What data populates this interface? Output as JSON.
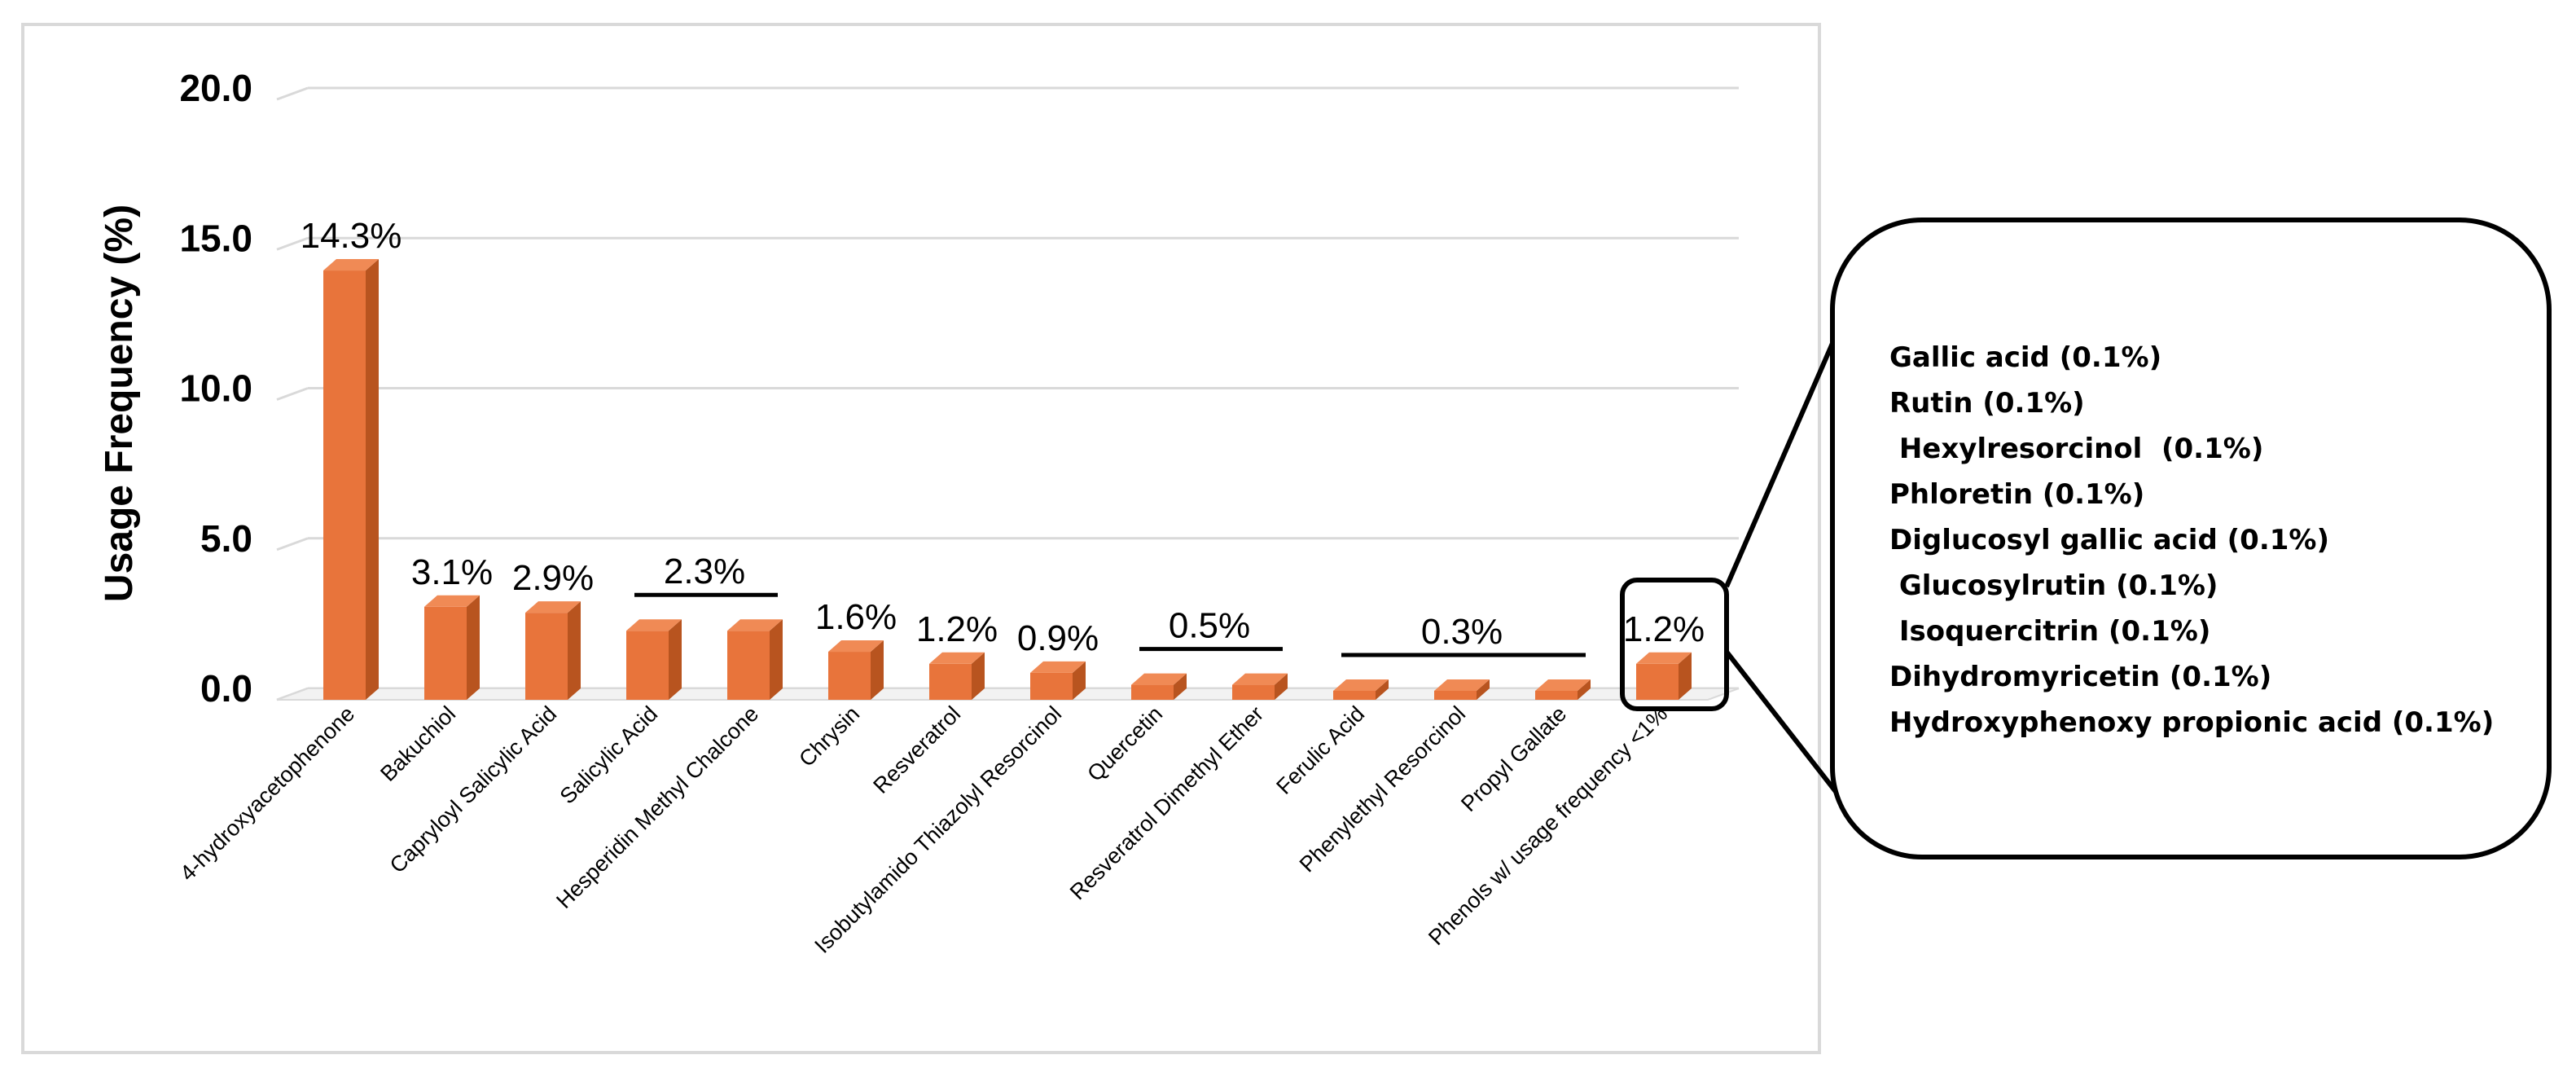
{
  "chart_data": {
    "type": "bar",
    "ylabel": "Usage Frequency (%)",
    "ylim": [
      0,
      20
    ],
    "yticks": [
      "0.0",
      "5.0",
      "10.0",
      "15.0",
      "20.0"
    ],
    "ytick_values": [
      0,
      5,
      10,
      15,
      20
    ],
    "grid": true,
    "bar_color": "#e8743b",
    "categories": [
      "4-hydroxyacetophenone",
      "Bakuchiol",
      "Capryloyl Salicylic Acid",
      "Salicylic Acid",
      "Hesperidin Methyl Chalcone",
      "Chrysin",
      "Resveratrol",
      "Isobutylamido Thiazolyl Resorcinol",
      "Quercetin",
      "Resveratrol Dimethyl Ether",
      "Ferulic Acid",
      "Phenylethyl Resorcinol",
      "Propyl Gallate",
      "Phenols w/ usage frequency <1%"
    ],
    "values": [
      14.3,
      3.1,
      2.9,
      2.3,
      2.3,
      1.6,
      1.2,
      0.9,
      0.5,
      0.5,
      0.3,
      0.3,
      0.3,
      1.2
    ],
    "data_labels": [
      {
        "text": "14.3%",
        "bars": [
          0
        ]
      },
      {
        "text": "3.1%",
        "bars": [
          1
        ]
      },
      {
        "text": "2.9%",
        "bars": [
          2
        ]
      },
      {
        "text": "2.3%",
        "bars": [
          3,
          4
        ]
      },
      {
        "text": "1.6%",
        "bars": [
          5
        ]
      },
      {
        "text": "1.2%",
        "bars": [
          6
        ]
      },
      {
        "text": "0.9%",
        "bars": [
          7
        ]
      },
      {
        "text": "0.5%",
        "bars": [
          8,
          9
        ]
      },
      {
        "text": "0.3%",
        "bars": [
          10,
          11,
          12
        ]
      },
      {
        "text": "1.2%",
        "bars": [
          13
        ]
      }
    ],
    "callout": {
      "items": [
        "Gallic acid (0.1%)",
        "Rutin (0.1%)",
        " Hexylresorcinol  (0.1%)",
        "Phloretin (0.1%)",
        "Diglucosyl gallic acid (0.1%)",
        " Glucosylrutin (0.1%)",
        " Isoquercitrin (0.1%)",
        "Dihydromyricetin (0.1%)",
        "Hydroxyphenoxy propionic acid (0.1%)"
      ]
    }
  }
}
